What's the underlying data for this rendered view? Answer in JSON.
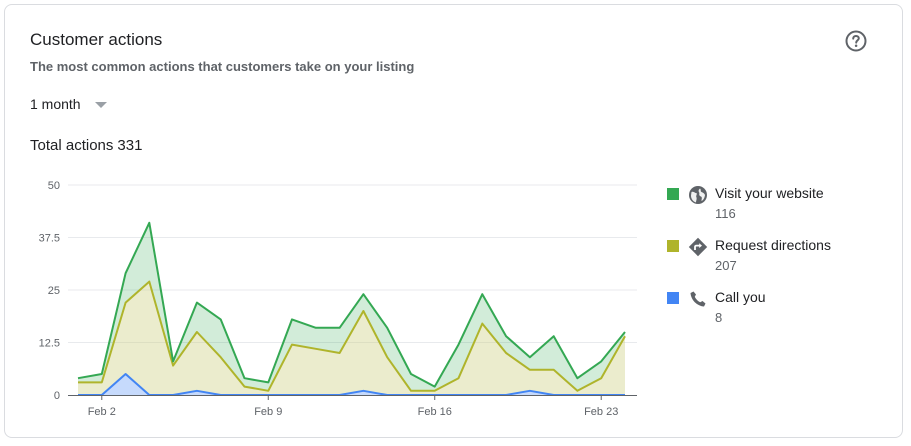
{
  "header": {
    "title": "Customer actions",
    "subtitle": "The most common actions that customers take on your listing"
  },
  "period": {
    "selected": "1 month"
  },
  "total": {
    "label": "Total actions",
    "value": "331"
  },
  "icons": {
    "help": "help-circle-icon",
    "website": "globe-icon",
    "directions": "directions-icon",
    "call": "phone-icon"
  },
  "legend": [
    {
      "label": "Visit your website",
      "value": "116",
      "color": "#34a853"
    },
    {
      "label": "Request directions",
      "value": "207",
      "color": "#afb42b"
    },
    {
      "label": "Call you",
      "value": "8",
      "color": "#4285f4"
    }
  ],
  "chart_data": {
    "type": "area",
    "stacked": true,
    "x": [
      "Feb 1",
      "Feb 2",
      "Feb 3",
      "Feb 4",
      "Feb 5",
      "Feb 6",
      "Feb 7",
      "Feb 8",
      "Feb 9",
      "Feb 10",
      "Feb 11",
      "Feb 12",
      "Feb 13",
      "Feb 14",
      "Feb 15",
      "Feb 16",
      "Feb 17",
      "Feb 18",
      "Feb 19",
      "Feb 20",
      "Feb 21",
      "Feb 22",
      "Feb 23",
      "Feb 24"
    ],
    "x_tick_labels": [
      "Feb 2",
      "Feb 9",
      "Feb 16",
      "Feb 23"
    ],
    "ylim": [
      0,
      50
    ],
    "y_ticks": [
      "0",
      "12.5",
      "25",
      "37.5",
      "50"
    ],
    "grid": true,
    "series": [
      {
        "name": "Call you",
        "color": "#4285f4",
        "values": [
          0,
          0,
          5,
          0,
          0,
          1,
          0,
          0,
          0,
          0,
          0,
          0,
          1,
          0,
          0,
          0,
          0,
          0,
          0,
          1,
          0,
          0,
          0,
          0
        ]
      },
      {
        "name": "Request directions",
        "color": "#afb42b",
        "values": [
          3,
          3,
          17,
          27,
          7,
          14,
          9,
          2,
          1,
          12,
          11,
          10,
          19,
          9,
          1,
          1,
          4,
          17,
          10,
          5,
          6,
          1,
          4,
          14
        ]
      },
      {
        "name": "Visit your website",
        "color": "#34a853",
        "values": [
          1,
          2,
          7,
          14,
          1,
          7,
          9,
          2,
          2,
          6,
          5,
          6,
          4,
          7,
          4,
          1,
          8,
          7,
          4,
          3,
          8,
          3,
          4,
          1
        ]
      }
    ]
  }
}
